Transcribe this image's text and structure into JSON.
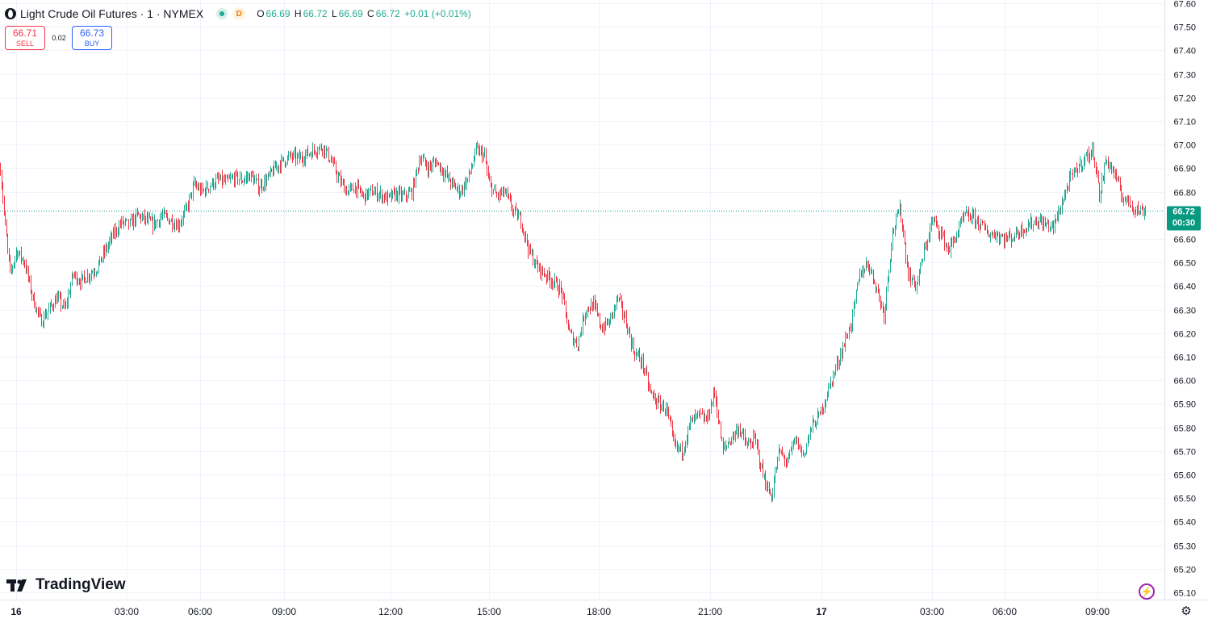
{
  "header": {
    "title": "Light Crude Oil Futures · 1 · NYMEX",
    "delay_badge": "D",
    "o_label": "O",
    "o_value": "66.69",
    "h_label": "H",
    "h_value": "66.72",
    "l_label": "L",
    "l_value": "66.69",
    "c_label": "C",
    "c_value": "66.72",
    "change": "+0.01 (+0.01%)"
  },
  "trade": {
    "sell_price": "66.71",
    "sell_label": "SELL",
    "spread": "0.02",
    "buy_price": "66.73",
    "buy_label": "BUY"
  },
  "branding": {
    "logo_text": "TradingView"
  },
  "icons": {
    "logo": "tradingview-logo-icon",
    "bolt": "lightning-icon",
    "settings": "gear-icon"
  },
  "colors": {
    "up": "#22ab94",
    "down": "#f23645",
    "grid": "#f0f3fa",
    "last_price_bg": "#089981"
  },
  "chart_data": {
    "type": "candlestick",
    "symbol": "Light Crude Oil Futures",
    "interval": "1",
    "exchange": "NYMEX",
    "ylim": [
      65.05,
      67.62
    ],
    "yticks": [
      "67.60",
      "67.50",
      "67.40",
      "67.30",
      "67.20",
      "67.10",
      "67.00",
      "66.90",
      "66.80",
      "66.70",
      "66.60",
      "66.50",
      "66.40",
      "66.30",
      "66.20",
      "66.10",
      "66.00",
      "65.90",
      "65.80",
      "65.70",
      "65.60",
      "65.50",
      "65.40",
      "65.30",
      "65.20",
      "65.10"
    ],
    "xticks": [
      "16",
      "03:00",
      "06:00",
      "09:00",
      "12:00",
      "15:00",
      "18:00",
      "21:00",
      "17",
      "03:00",
      "06:00",
      "09:00"
    ],
    "last_price": 66.72,
    "last_price_label": "66.72",
    "countdown_label": "00:30",
    "grid": true,
    "price_path": [
      [
        0,
        66.9
      ],
      [
        6,
        66.65
      ],
      [
        12,
        66.45
      ],
      [
        20,
        66.55
      ],
      [
        30,
        66.5
      ],
      [
        40,
        66.35
      ],
      [
        50,
        66.25
      ],
      [
        60,
        66.3
      ],
      [
        70,
        66.35
      ],
      [
        80,
        66.3
      ],
      [
        90,
        66.45
      ],
      [
        100,
        66.42
      ],
      [
        110,
        66.45
      ],
      [
        120,
        66.48
      ],
      [
        130,
        66.55
      ],
      [
        140,
        66.62
      ],
      [
        150,
        66.67
      ],
      [
        160,
        66.66
      ],
      [
        170,
        66.7
      ],
      [
        180,
        66.68
      ],
      [
        190,
        66.66
      ],
      [
        200,
        66.7
      ],
      [
        210,
        66.68
      ],
      [
        220,
        66.66
      ],
      [
        230,
        66.72
      ],
      [
        240,
        66.83
      ],
      [
        250,
        66.8
      ],
      [
        260,
        66.83
      ],
      [
        270,
        66.85
      ],
      [
        280,
        66.84
      ],
      [
        290,
        66.86
      ],
      [
        300,
        66.85
      ],
      [
        310,
        66.87
      ],
      [
        320,
        66.82
      ],
      [
        330,
        66.85
      ],
      [
        340,
        66.9
      ],
      [
        350,
        66.93
      ],
      [
        360,
        66.95
      ],
      [
        370,
        66.94
      ],
      [
        380,
        66.96
      ],
      [
        390,
        66.98
      ],
      [
        400,
        66.99
      ],
      [
        410,
        66.93
      ],
      [
        420,
        66.85
      ],
      [
        430,
        66.8
      ],
      [
        440,
        66.82
      ],
      [
        450,
        66.78
      ],
      [
        460,
        66.8
      ],
      [
        470,
        66.79
      ],
      [
        480,
        66.77
      ],
      [
        490,
        66.79
      ],
      [
        500,
        66.78
      ],
      [
        510,
        66.8
      ],
      [
        520,
        66.95
      ],
      [
        530,
        66.9
      ],
      [
        540,
        66.93
      ],
      [
        550,
        66.88
      ],
      [
        560,
        66.83
      ],
      [
        570,
        66.8
      ],
      [
        580,
        66.86
      ],
      [
        590,
        66.98
      ],
      [
        600,
        66.95
      ],
      [
        605,
        66.84
      ],
      [
        615,
        66.78
      ],
      [
        625,
        66.8
      ],
      [
        635,
        66.72
      ],
      [
        645,
        66.68
      ],
      [
        655,
        66.55
      ],
      [
        665,
        66.48
      ],
      [
        675,
        66.45
      ],
      [
        685,
        66.42
      ],
      [
        695,
        66.38
      ],
      [
        705,
        66.2
      ],
      [
        715,
        66.15
      ],
      [
        725,
        66.3
      ],
      [
        735,
        66.32
      ],
      [
        745,
        66.22
      ],
      [
        755,
        66.25
      ],
      [
        765,
        66.35
      ],
      [
        775,
        66.25
      ],
      [
        785,
        66.12
      ],
      [
        795,
        66.08
      ],
      [
        805,
        65.95
      ],
      [
        815,
        65.9
      ],
      [
        825,
        65.88
      ],
      [
        835,
        65.72
      ],
      [
        845,
        65.7
      ],
      [
        855,
        65.82
      ],
      [
        865,
        65.85
      ],
      [
        875,
        65.83
      ],
      [
        885,
        65.95
      ],
      [
        895,
        65.7
      ],
      [
        905,
        65.75
      ],
      [
        915,
        65.8
      ],
      [
        925,
        65.72
      ],
      [
        935,
        65.75
      ],
      [
        945,
        65.6
      ],
      [
        955,
        65.5
      ],
      [
        965,
        65.7
      ],
      [
        975,
        65.65
      ],
      [
        985,
        65.75
      ],
      [
        995,
        65.68
      ],
      [
        1005,
        65.8
      ],
      [
        1015,
        65.85
      ],
      [
        1025,
        65.95
      ],
      [
        1035,
        66.05
      ],
      [
        1045,
        66.15
      ],
      [
        1055,
        66.25
      ],
      [
        1065,
        66.45
      ],
      [
        1075,
        66.5
      ],
      [
        1085,
        66.4
      ],
      [
        1095,
        66.28
      ],
      [
        1105,
        66.62
      ],
      [
        1115,
        66.73
      ],
      [
        1125,
        66.45
      ],
      [
        1135,
        66.4
      ],
      [
        1145,
        66.55
      ],
      [
        1155,
        66.68
      ],
      [
        1165,
        66.63
      ],
      [
        1175,
        66.55
      ],
      [
        1185,
        66.62
      ],
      [
        1195,
        66.7
      ],
      [
        1205,
        66.69
      ],
      [
        1215,
        66.66
      ],
      [
        1225,
        66.62
      ],
      [
        1235,
        66.62
      ],
      [
        1245,
        66.6
      ],
      [
        1255,
        66.61
      ],
      [
        1265,
        66.64
      ],
      [
        1275,
        66.66
      ],
      [
        1285,
        66.68
      ],
      [
        1295,
        66.66
      ],
      [
        1305,
        66.65
      ],
      [
        1315,
        66.75
      ],
      [
        1325,
        66.85
      ],
      [
        1335,
        66.9
      ],
      [
        1345,
        66.95
      ],
      [
        1355,
        66.97
      ],
      [
        1362,
        66.78
      ],
      [
        1370,
        66.94
      ],
      [
        1380,
        66.88
      ],
      [
        1390,
        66.78
      ],
      [
        1400,
        66.75
      ],
      [
        1410,
        66.72
      ],
      [
        1420,
        66.72
      ]
    ]
  }
}
